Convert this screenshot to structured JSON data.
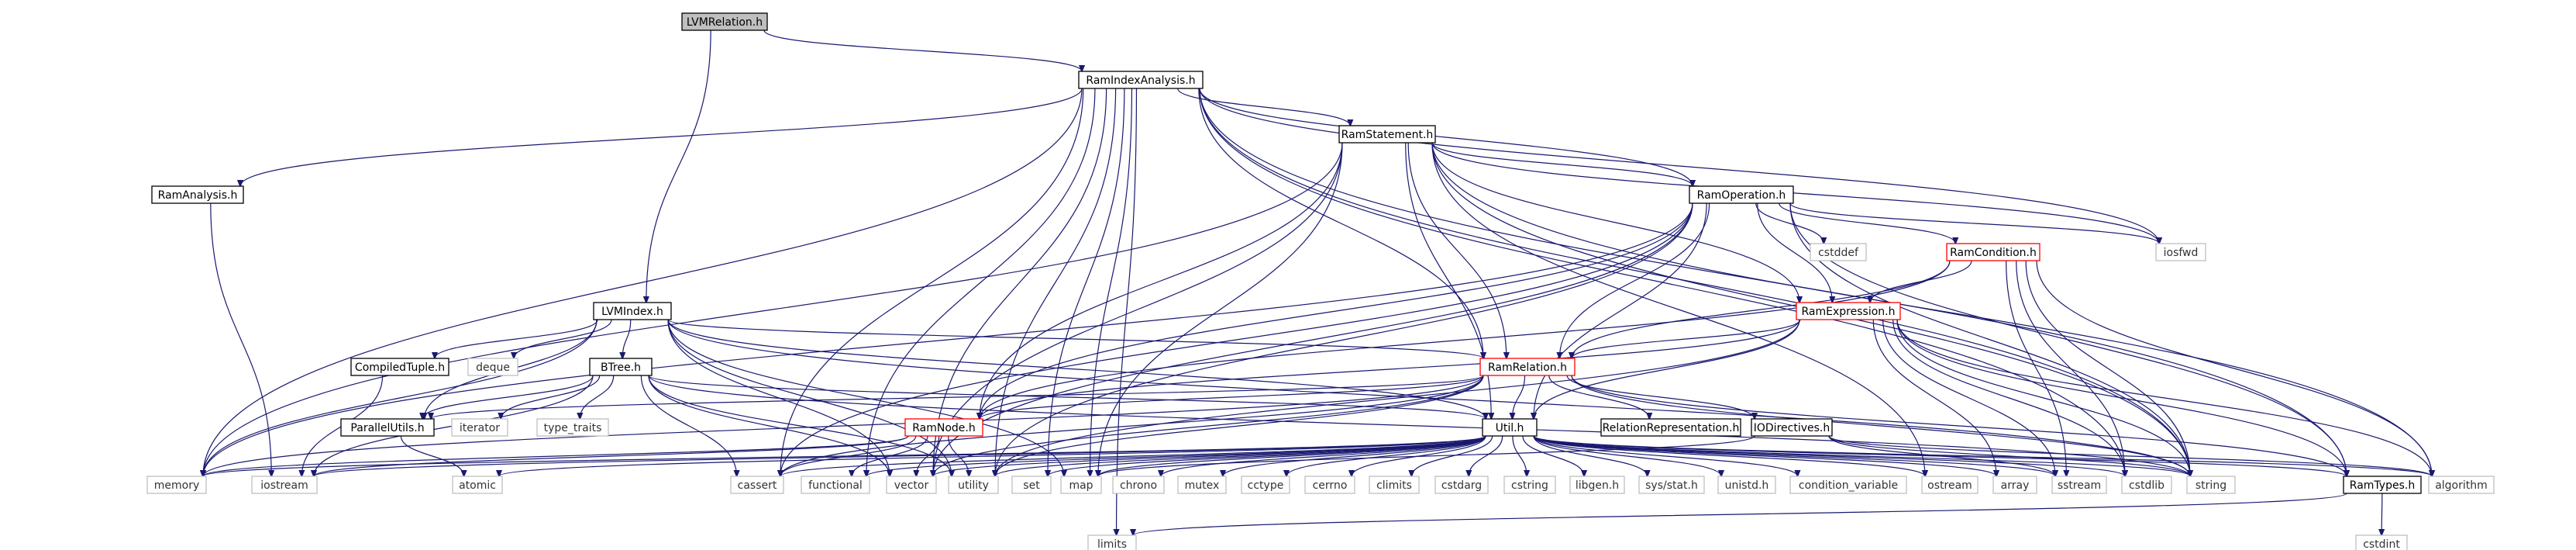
{
  "diagram": {
    "kind": "include dependency graph",
    "colors": {
      "edge": "#191970",
      "root_fill": "#bfbfbf",
      "local_border": "#000000",
      "external_border": "#bfbfbf",
      "truncated_border": "#ff0000"
    },
    "nodes": [
      {
        "id": "LVMRelation_h",
        "label": "LVMRelation.h",
        "style": "root"
      },
      {
        "id": "RamIndexAnalysis_h",
        "label": "RamIndexAnalysis.h",
        "style": "local"
      },
      {
        "id": "RamStatement_h",
        "label": "RamStatement.h",
        "style": "local"
      },
      {
        "id": "RamAnalysis_h",
        "label": "RamAnalysis.h",
        "style": "local"
      },
      {
        "id": "RamOperation_h",
        "label": "RamOperation.h",
        "style": "local"
      },
      {
        "id": "RamCondition_h",
        "label": "RamCondition.h",
        "style": "truncated"
      },
      {
        "id": "RamExpression_h",
        "label": "RamExpression.h",
        "style": "truncated"
      },
      {
        "id": "LVMIndex_h",
        "label": "LVMIndex.h",
        "style": "local"
      },
      {
        "id": "CompiledTuple_h",
        "label": "CompiledTuple.h",
        "style": "local"
      },
      {
        "id": "BTree_h",
        "label": "BTree.h",
        "style": "local"
      },
      {
        "id": "RamRelation_h",
        "label": "RamRelation.h",
        "style": "truncated"
      },
      {
        "id": "ParallelUtils_h",
        "label": "ParallelUtils.h",
        "style": "local"
      },
      {
        "id": "RamNode_h",
        "label": "RamNode.h",
        "style": "truncated"
      },
      {
        "id": "Util_h",
        "label": "Util.h",
        "style": "local"
      },
      {
        "id": "RelationRepresentation_h",
        "label": "RelationRepresentation.h",
        "style": "local"
      },
      {
        "id": "IODirectives_h",
        "label": "IODirectives.h",
        "style": "local"
      },
      {
        "id": "RamTypes_h",
        "label": "RamTypes.h",
        "style": "local"
      },
      {
        "id": "deque",
        "label": "deque",
        "style": "external"
      },
      {
        "id": "iterator",
        "label": "iterator",
        "style": "external"
      },
      {
        "id": "type_traits",
        "label": "type_traits",
        "style": "external"
      },
      {
        "id": "cstddef",
        "label": "cstddef",
        "style": "external"
      },
      {
        "id": "iosfwd",
        "label": "iosfwd",
        "style": "external"
      },
      {
        "id": "memory",
        "label": "memory",
        "style": "external"
      },
      {
        "id": "iostream",
        "label": "iostream",
        "style": "external"
      },
      {
        "id": "atomic",
        "label": "atomic",
        "style": "external"
      },
      {
        "id": "cassert",
        "label": "cassert",
        "style": "external"
      },
      {
        "id": "functional",
        "label": "functional",
        "style": "external"
      },
      {
        "id": "vector",
        "label": "vector",
        "style": "external"
      },
      {
        "id": "utility",
        "label": "utility",
        "style": "external"
      },
      {
        "id": "set",
        "label": "set",
        "style": "external"
      },
      {
        "id": "map",
        "label": "map",
        "style": "external"
      },
      {
        "id": "chrono",
        "label": "chrono",
        "style": "external"
      },
      {
        "id": "mutex",
        "label": "mutex",
        "style": "external"
      },
      {
        "id": "cctype",
        "label": "cctype",
        "style": "external"
      },
      {
        "id": "cerrno",
        "label": "cerrno",
        "style": "external"
      },
      {
        "id": "climits",
        "label": "climits",
        "style": "external"
      },
      {
        "id": "cstdarg",
        "label": "cstdarg",
        "style": "external"
      },
      {
        "id": "cstring",
        "label": "cstring",
        "style": "external"
      },
      {
        "id": "libgen_h",
        "label": "libgen.h",
        "style": "external"
      },
      {
        "id": "sys_stat_h",
        "label": "sys/stat.h",
        "style": "external"
      },
      {
        "id": "unistd_h",
        "label": "unistd.h",
        "style": "external"
      },
      {
        "id": "condition_variable",
        "label": "condition_variable",
        "style": "external"
      },
      {
        "id": "ostream",
        "label": "ostream",
        "style": "external"
      },
      {
        "id": "array",
        "label": "array",
        "style": "external"
      },
      {
        "id": "sstream",
        "label": "sstream",
        "style": "external"
      },
      {
        "id": "cstdlib",
        "label": "cstdlib",
        "style": "external"
      },
      {
        "id": "string",
        "label": "string",
        "style": "external"
      },
      {
        "id": "algorithm",
        "label": "algorithm",
        "style": "external"
      },
      {
        "id": "limits",
        "label": "limits",
        "style": "external"
      },
      {
        "id": "cstdint",
        "label": "cstdint",
        "style": "external"
      }
    ],
    "edges": [
      [
        "LVMRelation_h",
        "RamIndexAnalysis_h"
      ],
      [
        "LVMRelation_h",
        "LVMIndex_h"
      ],
      [
        "RamIndexAnalysis_h",
        "RamStatement_h"
      ],
      [
        "RamIndexAnalysis_h",
        "RamAnalysis_h"
      ],
      [
        "RamIndexAnalysis_h",
        "RamOperation_h"
      ],
      [
        "RamIndexAnalysis_h",
        "RamRelation_h"
      ],
      [
        "RamIndexAnalysis_h",
        "memory"
      ],
      [
        "RamIndexAnalysis_h",
        "cassert"
      ],
      [
        "RamIndexAnalysis_h",
        "functional"
      ],
      [
        "RamIndexAnalysis_h",
        "vector"
      ],
      [
        "RamIndexAnalysis_h",
        "utility"
      ],
      [
        "RamIndexAnalysis_h",
        "set"
      ],
      [
        "RamIndexAnalysis_h",
        "map"
      ],
      [
        "RamIndexAnalysis_h",
        "iosfwd"
      ],
      [
        "RamIndexAnalysis_h",
        "cstdlib"
      ],
      [
        "RamIndexAnalysis_h",
        "string"
      ],
      [
        "RamIndexAnalysis_h",
        "RamTypes_h"
      ],
      [
        "RamIndexAnalysis_h",
        "limits"
      ],
      [
        "RamStatement_h",
        "RamOperation_h"
      ],
      [
        "RamStatement_h",
        "RamRelation_h"
      ],
      [
        "RamStatement_h",
        "RamNode_h"
      ],
      [
        "RamStatement_h",
        "Util_h"
      ],
      [
        "RamStatement_h",
        "RamExpression_h"
      ],
      [
        "RamStatement_h",
        "memory"
      ],
      [
        "RamStatement_h",
        "vector"
      ],
      [
        "RamStatement_h",
        "map"
      ],
      [
        "RamStatement_h",
        "ostream"
      ],
      [
        "RamStatement_h",
        "string"
      ],
      [
        "RamStatement_h",
        "algorithm"
      ],
      [
        "RamStatement_h",
        "iosfwd"
      ],
      [
        "RamAnalysis_h",
        "iostream"
      ],
      [
        "RamOperation_h",
        "RamCondition_h"
      ],
      [
        "RamOperation_h",
        "RamExpression_h"
      ],
      [
        "RamOperation_h",
        "RamRelation_h"
      ],
      [
        "RamOperation_h",
        "RamNode_h"
      ],
      [
        "RamOperation_h",
        "Util_h"
      ],
      [
        "RamOperation_h",
        "cstddef"
      ],
      [
        "RamOperation_h",
        "iosfwd"
      ],
      [
        "RamOperation_h",
        "memory"
      ],
      [
        "RamOperation_h",
        "cassert"
      ],
      [
        "RamOperation_h",
        "utility"
      ],
      [
        "RamOperation_h",
        "vector"
      ],
      [
        "RamOperation_h",
        "string"
      ],
      [
        "RamOperation_h",
        "RamTypes_h"
      ],
      [
        "RamCondition_h",
        "RamExpression_h"
      ],
      [
        "RamCondition_h",
        "RamRelation_h"
      ],
      [
        "RamCondition_h",
        "RamNode_h"
      ],
      [
        "RamCondition_h",
        "sstream"
      ],
      [
        "RamCondition_h",
        "cstdlib"
      ],
      [
        "RamCondition_h",
        "string"
      ],
      [
        "RamCondition_h",
        "algorithm"
      ],
      [
        "RamExpression_h",
        "RamRelation_h"
      ],
      [
        "RamExpression_h",
        "RamNode_h"
      ],
      [
        "RamExpression_h",
        "Util_h"
      ],
      [
        "RamExpression_h",
        "array"
      ],
      [
        "RamExpression_h",
        "sstream"
      ],
      [
        "RamExpression_h",
        "cstdlib"
      ],
      [
        "RamExpression_h",
        "string"
      ],
      [
        "RamExpression_h",
        "algorithm"
      ],
      [
        "RamExpression_h",
        "utility"
      ],
      [
        "RamExpression_h",
        "RamTypes_h"
      ],
      [
        "LVMIndex_h",
        "CompiledTuple_h"
      ],
      [
        "LVMIndex_h",
        "deque"
      ],
      [
        "LVMIndex_h",
        "BTree_h"
      ],
      [
        "LVMIndex_h",
        "ParallelUtils_h"
      ],
      [
        "LVMIndex_h",
        "RamRelation_h"
      ],
      [
        "LVMIndex_h",
        "Util_h"
      ],
      [
        "LVMIndex_h",
        "memory"
      ],
      [
        "LVMIndex_h",
        "vector"
      ],
      [
        "LVMIndex_h",
        "utility"
      ],
      [
        "LVMIndex_h",
        "map"
      ],
      [
        "LVMIndex_h",
        "string"
      ],
      [
        "CompiledTuple_h",
        "iostream"
      ],
      [
        "BTree_h",
        "ParallelUtils_h"
      ],
      [
        "BTree_h",
        "iterator"
      ],
      [
        "BTree_h",
        "type_traits"
      ],
      [
        "BTree_h",
        "Util_h"
      ],
      [
        "BTree_h",
        "iostream"
      ],
      [
        "BTree_h",
        "cassert"
      ],
      [
        "BTree_h",
        "vector"
      ],
      [
        "BTree_h",
        "utility"
      ],
      [
        "BTree_h",
        "string"
      ],
      [
        "ParallelUtils_h",
        "atomic"
      ],
      [
        "RamRelation_h",
        "RamNode_h"
      ],
      [
        "RamRelation_h",
        "Util_h"
      ],
      [
        "RamRelation_h",
        "RelationRepresentation_h"
      ],
      [
        "RamRelation_h",
        "IODirectives_h"
      ],
      [
        "RamRelation_h",
        "ParallelUtils_h"
      ],
      [
        "RamRelation_h",
        "memory"
      ],
      [
        "RamRelation_h",
        "cassert"
      ],
      [
        "RamRelation_h",
        "vector"
      ],
      [
        "RamRelation_h",
        "utility"
      ],
      [
        "RamRelation_h",
        "string"
      ],
      [
        "RamRelation_h",
        "RamTypes_h"
      ],
      [
        "RamNode_h",
        "memory"
      ],
      [
        "RamNode_h",
        "iostream"
      ],
      [
        "RamNode_h",
        "cassert"
      ],
      [
        "RamNode_h",
        "functional"
      ],
      [
        "RamNode_h",
        "vector"
      ],
      [
        "RamNode_h",
        "utility"
      ],
      [
        "Util_h",
        "memory"
      ],
      [
        "Util_h",
        "iostream"
      ],
      [
        "Util_h",
        "atomic"
      ],
      [
        "Util_h",
        "cassert"
      ],
      [
        "Util_h",
        "functional"
      ],
      [
        "Util_h",
        "vector"
      ],
      [
        "Util_h",
        "utility"
      ],
      [
        "Util_h",
        "set"
      ],
      [
        "Util_h",
        "map"
      ],
      [
        "Util_h",
        "chrono"
      ],
      [
        "Util_h",
        "mutex"
      ],
      [
        "Util_h",
        "cctype"
      ],
      [
        "Util_h",
        "cerrno"
      ],
      [
        "Util_h",
        "climits"
      ],
      [
        "Util_h",
        "cstdarg"
      ],
      [
        "Util_h",
        "cstring"
      ],
      [
        "Util_h",
        "libgen_h"
      ],
      [
        "Util_h",
        "sys_stat_h"
      ],
      [
        "Util_h",
        "unistd_h"
      ],
      [
        "Util_h",
        "condition_variable"
      ],
      [
        "Util_h",
        "ostream"
      ],
      [
        "Util_h",
        "array"
      ],
      [
        "Util_h",
        "sstream"
      ],
      [
        "Util_h",
        "cstdlib"
      ],
      [
        "Util_h",
        "string"
      ],
      [
        "Util_h",
        "algorithm"
      ],
      [
        "Util_h",
        "RamTypes_h"
      ],
      [
        "IODirectives_h",
        "map"
      ],
      [
        "IODirectives_h",
        "sstream"
      ],
      [
        "IODirectives_h",
        "string"
      ],
      [
        "IODirectives_h",
        "algorithm"
      ],
      [
        "RamTypes_h",
        "limits"
      ],
      [
        "RamTypes_h",
        "cstdint"
      ]
    ]
  }
}
